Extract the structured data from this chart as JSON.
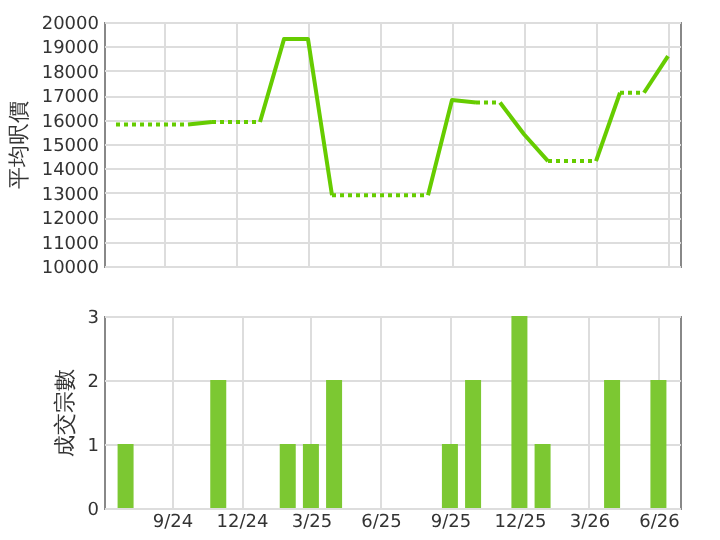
{
  "chart_data": [
    {
      "type": "line",
      "ylabel": "平均呎價",
      "categories": [
        null,
        null,
        null,
        null,
        null,
        null,
        null,
        null,
        null,
        null,
        null,
        null,
        null,
        null,
        null,
        null,
        null,
        null,
        null,
        null,
        null,
        null,
        null,
        null
      ],
      "series": [
        {
          "color": "#66cc00",
          "line_style": "dotted",
          "values": [
            15800,
            15800,
            15800,
            15800,
            null,
            null,
            null,
            null,
            null,
            null,
            null,
            null,
            null,
            null,
            null,
            null,
            null,
            null,
            null,
            null,
            null,
            null,
            null,
            null
          ]
        },
        {
          "color": "#66cc00",
          "line_style": "solid",
          "values": [
            null,
            null,
            null,
            15800,
            15900,
            null,
            null,
            null,
            null,
            null,
            null,
            null,
            null,
            null,
            null,
            null,
            null,
            null,
            null,
            null,
            null,
            null,
            null,
            null
          ]
        },
        {
          "color": "#66cc00",
          "line_style": "dotted",
          "values": [
            null,
            null,
            null,
            null,
            15900,
            15900,
            15900,
            null,
            null,
            null,
            null,
            null,
            null,
            null,
            null,
            null,
            null,
            null,
            null,
            null,
            null,
            null,
            null,
            null
          ]
        },
        {
          "color": "#66cc00",
          "line_style": "solid",
          "values": [
            null,
            null,
            null,
            null,
            null,
            null,
            15900,
            19300,
            19300,
            12900,
            null,
            null,
            null,
            null,
            null,
            null,
            null,
            null,
            null,
            null,
            null,
            null,
            null,
            null
          ]
        },
        {
          "color": "#66cc00",
          "line_style": "dotted",
          "values": [
            null,
            null,
            null,
            null,
            null,
            null,
            null,
            null,
            null,
            12900,
            12900,
            12900,
            12900,
            12900,
            null,
            null,
            null,
            null,
            null,
            null,
            null,
            null,
            null,
            null
          ]
        },
        {
          "color": "#66cc00",
          "line_style": "solid",
          "values": [
            null,
            null,
            null,
            null,
            null,
            null,
            null,
            null,
            null,
            null,
            null,
            null,
            null,
            12900,
            16800,
            16700,
            null,
            null,
            null,
            null,
            null,
            null,
            null,
            null
          ]
        },
        {
          "color": "#66cc00",
          "line_style": "dotted",
          "values": [
            null,
            null,
            null,
            null,
            null,
            null,
            null,
            null,
            null,
            null,
            null,
            null,
            null,
            null,
            null,
            16700,
            16700,
            null,
            null,
            null,
            null,
            null,
            null,
            null
          ]
        },
        {
          "color": "#66cc00",
          "line_style": "solid",
          "values": [
            null,
            null,
            null,
            null,
            null,
            null,
            null,
            null,
            null,
            null,
            null,
            null,
            null,
            null,
            null,
            null,
            16700,
            15400,
            14300,
            null,
            null,
            null,
            null,
            null
          ]
        },
        {
          "color": "#66cc00",
          "line_style": "dotted",
          "values": [
            null,
            null,
            null,
            null,
            null,
            null,
            null,
            null,
            null,
            null,
            null,
            null,
            null,
            null,
            null,
            null,
            null,
            null,
            14300,
            14300,
            14300,
            null,
            null,
            null
          ]
        },
        {
          "color": "#66cc00",
          "line_style": "solid",
          "values": [
            null,
            null,
            null,
            null,
            null,
            null,
            null,
            null,
            null,
            null,
            null,
            null,
            null,
            null,
            null,
            null,
            null,
            null,
            null,
            null,
            14300,
            17100,
            null,
            null
          ]
        },
        {
          "color": "#66cc00",
          "line_style": "dotted",
          "values": [
            null,
            null,
            null,
            null,
            null,
            null,
            null,
            null,
            null,
            null,
            null,
            null,
            null,
            null,
            null,
            null,
            null,
            null,
            null,
            null,
            null,
            17100,
            17100,
            null
          ]
        },
        {
          "color": "#66cc00",
          "line_style": "solid",
          "values": [
            null,
            null,
            null,
            null,
            null,
            null,
            null,
            null,
            null,
            null,
            null,
            null,
            null,
            null,
            null,
            null,
            null,
            null,
            null,
            null,
            null,
            null,
            17100,
            18600
          ]
        }
      ],
      "ylim": [
        10000,
        20000
      ],
      "yticks": [
        10000,
        11000,
        12000,
        13000,
        14000,
        15000,
        16000,
        17000,
        18000,
        19000,
        20000
      ],
      "grid": true,
      "tick_labels": "y"
    },
    {
      "type": "bar",
      "ylabel": "成交宗數",
      "categories": [
        null,
        null,
        "9/24",
        null,
        null,
        "12/24",
        null,
        null,
        "3/25",
        null,
        null,
        "6/25",
        null,
        null,
        "9/25",
        null,
        null,
        "12/25",
        null,
        null,
        "3/26",
        null,
        null,
        "6/26"
      ],
      "values": [
        1,
        null,
        null,
        null,
        2,
        null,
        null,
        1,
        1,
        2,
        null,
        null,
        null,
        null,
        1,
        2,
        null,
        3,
        1,
        null,
        null,
        2,
        null,
        2
      ],
      "color": "#7cc832",
      "ylim": [
        0,
        3
      ],
      "yticks": [
        0,
        1,
        2,
        3
      ],
      "grid": true
    }
  ]
}
